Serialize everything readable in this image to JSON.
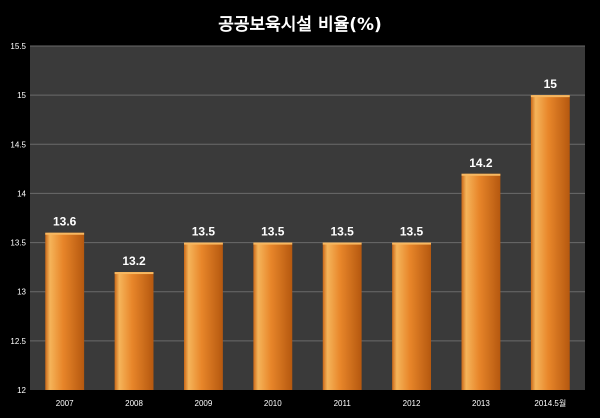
{
  "chart_data": {
    "type": "bar",
    "title": "공공보육시설 비율(%)",
    "categories": [
      "2007",
      "2008",
      "2009",
      "2010",
      "2011",
      "2012",
      "2013",
      "2014.5월"
    ],
    "values": [
      13.6,
      13.2,
      13.5,
      13.5,
      13.5,
      13.5,
      14.2,
      15
    ],
    "value_labels": [
      "13.6",
      "13.2",
      "13.5",
      "13.5",
      "13.5",
      "13.5",
      "14.2",
      "15"
    ],
    "y_ticks": [
      "12",
      "12.5",
      "13",
      "13.5",
      "14",
      "14.5",
      "15",
      "15.5"
    ],
    "ylim": [
      12,
      15.5
    ],
    "xlabel": "",
    "ylabel": "",
    "grid": true,
    "colors": {
      "background": "#000000",
      "plot_area": "#3a3a3a",
      "gridline": "#6a6a6a",
      "bar_light": "#f7b861",
      "bar_mid": "#e8862a",
      "bar_dark": "#b5580f",
      "text": "#ffffff"
    }
  }
}
